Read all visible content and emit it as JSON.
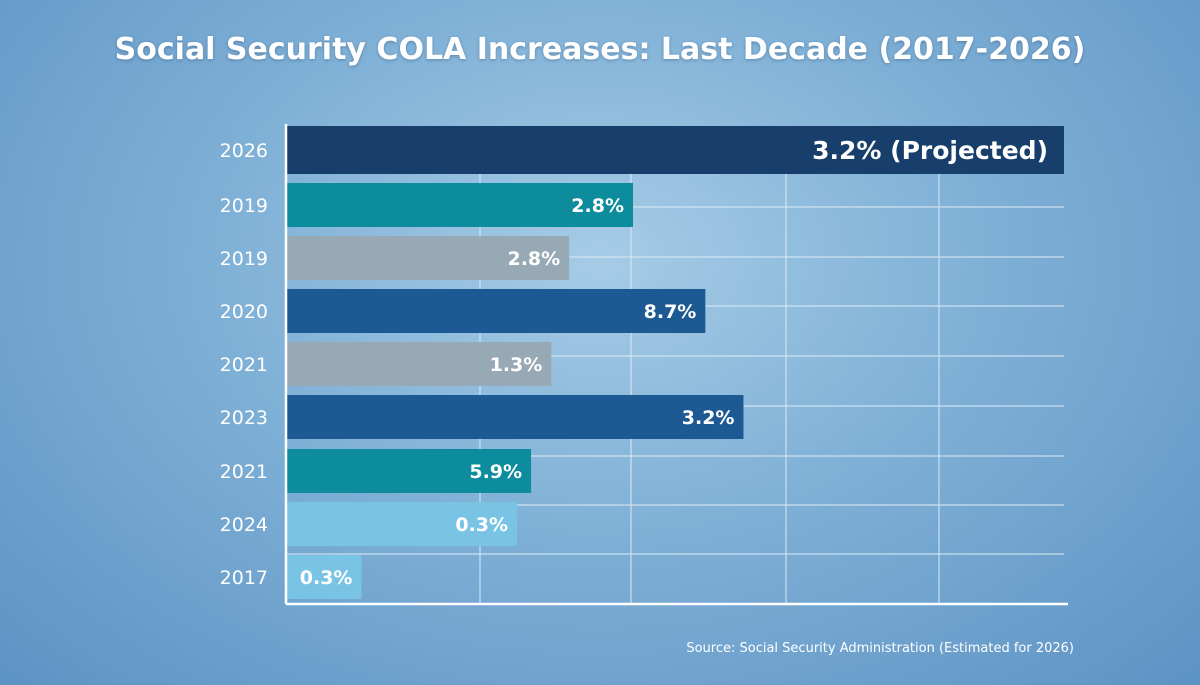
{
  "title": "Social Security COLA Increases: Last Decade (2017-2026)",
  "source": "Source: Social Security Administration (Estimated for 2026)",
  "chart_data": {
    "type": "bar",
    "orientation": "horizontal",
    "title": "Social Security COLA Increases: Last Decade (2017-2026)",
    "xlabel": "",
    "ylabel": "",
    "categories": [
      "2026",
      "2019",
      "2019",
      "2020",
      "2021",
      "2023",
      "2021",
      "2024",
      "2017"
    ],
    "values": [
      3.2,
      2.8,
      2.8,
      8.7,
      1.3,
      3.2,
      5.9,
      0.3,
      0.3
    ],
    "bar_display_level": [
      1.0,
      0.446,
      0.364,
      0.539,
      0.341,
      0.588,
      0.315,
      0.297,
      0.097
    ],
    "data_labels": [
      "3.2% (Projected)",
      "2.8%",
      "2.8%",
      "8.7%",
      "1.3%",
      "3.2%",
      "5.9%",
      "0.3%",
      "0.3%"
    ],
    "bar_colors": [
      "#183f6b",
      "#0c8c9c",
      "#98a9b6",
      "#1d5a93",
      "#98a9b6",
      "#1d5a93",
      "#0c8c9c",
      "#79c4e4",
      "#79c4e4"
    ],
    "tick_labels_x": [],
    "grid": true,
    "legend": "none"
  },
  "colors": {
    "axis": "#ffffff",
    "grid": "#dbe9f4",
    "category_text": "#ffffff"
  }
}
